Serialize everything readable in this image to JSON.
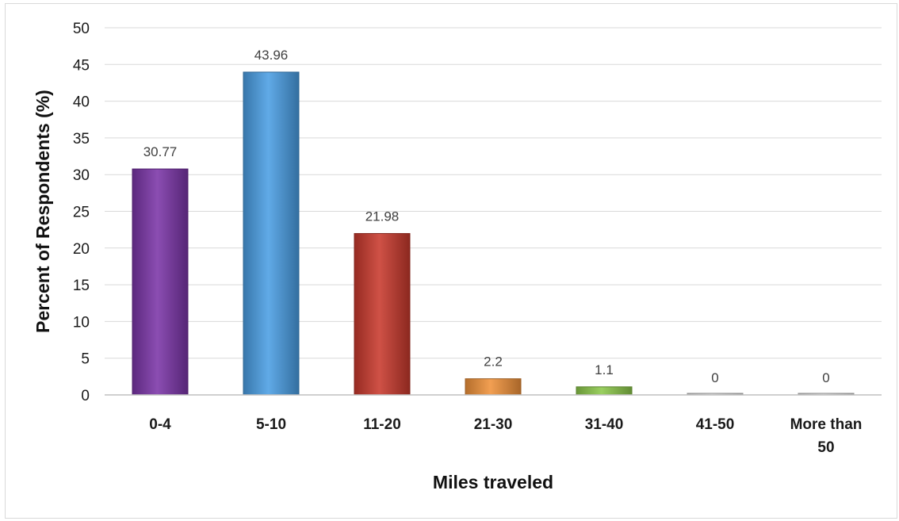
{
  "chart_data": {
    "type": "bar",
    "title": "",
    "xlabel": "Miles traveled",
    "ylabel": "Percent of Respondents (%)",
    "ylim": [
      0,
      50
    ],
    "yticks": [
      0,
      5,
      10,
      15,
      20,
      25,
      30,
      35,
      40,
      45,
      50
    ],
    "grid": true,
    "legend": "none",
    "categories": [
      [
        "0-4"
      ],
      [
        "5-10"
      ],
      [
        "11-20"
      ],
      [
        "21-30"
      ],
      [
        "31-40"
      ],
      [
        "41-50"
      ],
      [
        "More than",
        "50"
      ]
    ],
    "values": [
      30.77,
      43.96,
      21.98,
      2.2,
      1.1,
      0,
      0
    ],
    "data_labels": [
      "30.77",
      "43.96",
      "21.98",
      "2.2",
      "1.1",
      "0",
      "0"
    ],
    "colors": [
      "#7b35a8",
      "#4a9ee4",
      "#c8392d",
      "#f0923a",
      "#8cc84a",
      "#d9d9d9",
      "#d9d9d9"
    ]
  }
}
